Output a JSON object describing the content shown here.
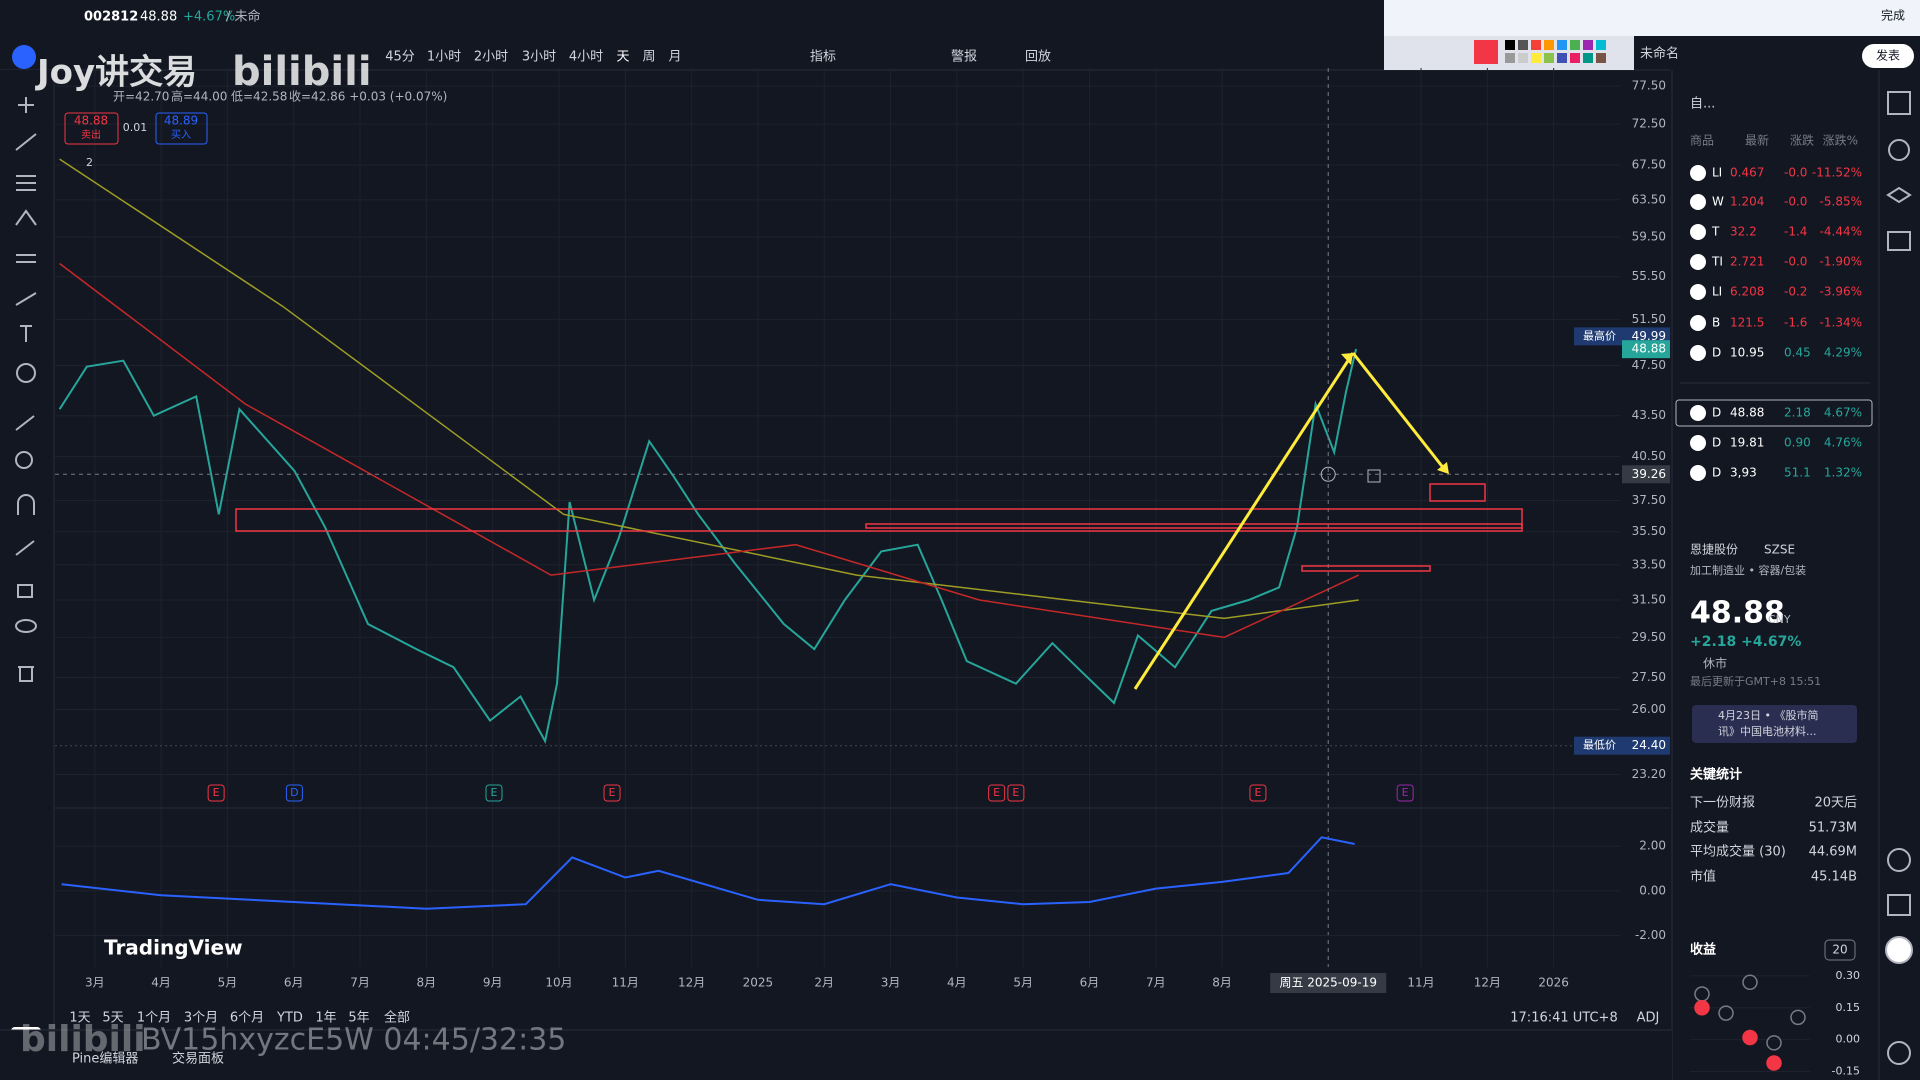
{
  "top_bar": {
    "symbol": "002812",
    "price": "48.88",
    "change": "+4.67%",
    "status": "/ 未命",
    "intervals": [
      "45分",
      "1小时",
      "2小时",
      "3小时",
      "4小时",
      "天",
      "周",
      "月"
    ],
    "indicators": "指标",
    "alert": "警报",
    "replay": "回放",
    "layout_name": "未命名",
    "publish": "发表",
    "done": "完成"
  },
  "watermark": {
    "channel": "Joy讲交易",
    "site": "bilibili",
    "video": "BV15hxyzcE5W 04:45/32:35"
  },
  "legend": {
    "open": "开=42.70",
    "high": "高=44.00",
    "low": "低=42.58",
    "close": "收=42.86 +0.03 (+0.07%)",
    "sell_price": "48.88",
    "sell": "卖出",
    "spread": "0.01",
    "buy_price": "48.89",
    "buy": "买入",
    "indicator_count": "2",
    "logo": "TradingView"
  },
  "chart_data": [
    {
      "type": "line",
      "log_scale": true,
      "xlim": [
        -0.6,
        23
      ],
      "ylim": [
        22.5,
        80
      ],
      "xticks": [
        {
          "value": 0,
          "label": "3月"
        },
        {
          "value": 1,
          "label": "4月"
        },
        {
          "value": 2,
          "label": "5月"
        },
        {
          "value": 3,
          "label": "6月"
        },
        {
          "value": 4,
          "label": "7月"
        },
        {
          "value": 5,
          "label": "8月"
        },
        {
          "value": 6,
          "label": "9月"
        },
        {
          "value": 7,
          "label": "10月"
        },
        {
          "value": 8,
          "label": "11月"
        },
        {
          "value": 9,
          "label": "12月"
        },
        {
          "value": 10,
          "label": "2025"
        },
        {
          "value": 11,
          "label": "2月"
        },
        {
          "value": 12,
          "label": "3月"
        },
        {
          "value": 13,
          "label": "4月"
        },
        {
          "value": 14,
          "label": "5月"
        },
        {
          "value": 15,
          "label": "6月"
        },
        {
          "value": 16,
          "label": "7月"
        },
        {
          "value": 17,
          "label": "8月"
        },
        {
          "value": 20,
          "label": "11月"
        },
        {
          "value": 21,
          "label": "12月"
        },
        {
          "value": 22,
          "label": "2026"
        }
      ],
      "yticks": [
        {
          "value": 77.5,
          "label": "77.50"
        },
        {
          "value": 72.5,
          "label": "72.50"
        },
        {
          "value": 67.5,
          "label": "67.50"
        },
        {
          "value": 63.5,
          "label": "63.50"
        },
        {
          "value": 59.5,
          "label": "59.50"
        },
        {
          "value": 55.5,
          "label": "55.50"
        },
        {
          "value": 51.5,
          "label": "51.50"
        },
        {
          "value": 47.5,
          "label": "47.50"
        },
        {
          "value": 43.5,
          "label": "43.50"
        },
        {
          "value": 40.5,
          "label": "40.50"
        },
        {
          "value": 37.5,
          "label": "37.50"
        },
        {
          "value": 35.5,
          "label": "35.50"
        },
        {
          "value": 33.5,
          "label": "33.50"
        },
        {
          "value": 31.5,
          "label": "31.50"
        },
        {
          "value": 29.5,
          "label": "29.50"
        },
        {
          "value": 27.5,
          "label": "27.50"
        },
        {
          "value": 26,
          "label": "26.00"
        },
        {
          "value": 23.2,
          "label": "23.20"
        }
      ],
      "series": [
        {
          "color": "#26a69a",
          "x": [
            -0.53,
            -0.12,
            0.43,
            0.89,
            1.53,
            1.87,
            2.18,
            3.01,
            3.47,
            4.12,
            4.85,
            5.41,
            5.96,
            6.42,
            6.79,
            6.97,
            7.16,
            7.53,
            7.9,
            8.36,
            8.73,
            9.1,
            9.65,
            10.39,
            10.85,
            11.31,
            11.86,
            12.41,
            12.77,
            13.15,
            13.89,
            14.44,
            14.81,
            15.37,
            15.73,
            16.29,
            16.84,
            17.4,
            17.86,
            18.13,
            18.41,
            18.69,
            18.87,
            19.02
          ],
          "values": [
            44.0,
            47.4,
            47.9,
            43.5,
            45.0,
            36.6,
            44.0,
            39.5,
            35.8,
            30.2,
            28.9,
            28.0,
            25.5,
            26.6,
            24.6,
            27.2,
            37.4,
            31.5,
            35.1,
            41.6,
            39.1,
            36.6,
            33.6,
            30.2,
            28.9,
            31.5,
            34.3,
            34.7,
            31.5,
            28.3,
            27.2,
            29.2,
            28.0,
            26.3,
            29.6,
            28.0,
            30.9,
            31.5,
            32.2,
            35.8,
            44.4,
            40.8,
            45.4,
            48.9
          ]
        },
        {
          "color": "#9e9d24",
          "x": [
            -0.53,
            2.83,
            7.07,
            11.49,
            17.03,
            19.06
          ],
          "values": [
            68.2,
            52.7,
            36.6,
            32.9,
            30.5,
            31.5
          ]
        },
        {
          "color": "#c62828",
          "x": [
            -0.53,
            2.27,
            6.88,
            10.57,
            13.34,
            17.03,
            19.06
          ],
          "values": [
            56.8,
            44.4,
            32.9,
            34.7,
            31.5,
            29.5,
            32.9
          ]
        }
      ],
      "high_marker": {
        "label": "最高价",
        "value": 49.99
      },
      "last_price": 48.88,
      "crosshair": {
        "price": 39.26,
        "x": 18.6,
        "date": "周五 2025-09-19"
      },
      "low_marker": {
        "label": "最低价",
        "value": 24.4,
        "value_label": "24.40"
      },
      "events": [
        {
          "label": "E",
          "x": 1.83,
          "color": "#f23645"
        },
        {
          "label": "D",
          "x": 3.01,
          "color": "#2962ff"
        },
        {
          "label": "E",
          "x": 6.02,
          "color": "#26a69a"
        },
        {
          "label": "E",
          "x": 7.8,
          "color": "#f23645"
        },
        {
          "label": "E",
          "x": 13.6,
          "color": "#f23645"
        },
        {
          "label": "E",
          "x": 13.89,
          "color": "#f23645"
        },
        {
          "label": "E",
          "x": 17.54,
          "color": "#f23645"
        },
        {
          "label": "E",
          "x": 19.76,
          "color": "#9c27b0"
        }
      ]
    },
    {
      "type": "line",
      "xlim": [
        -0.6,
        23
      ],
      "ylim": [
        -3.1,
        3.4
      ],
      "yticks": [
        {
          "value": 2,
          "label": "2.00"
        },
        {
          "value": 0,
          "label": "0.00"
        },
        {
          "value": -2,
          "label": "-2.00"
        }
      ],
      "series": [
        {
          "color": "#2962ff",
          "x": [
            -0.5,
            1,
            3,
            5,
            6.5,
            7.2,
            8,
            8.5,
            10,
            11,
            12,
            13,
            14,
            15,
            16,
            17,
            18,
            18.5,
            19
          ],
          "values": [
            0.3,
            -0.2,
            -0.5,
            -0.8,
            -0.6,
            1.5,
            0.6,
            0.9,
            -0.4,
            -0.6,
            0.3,
            -0.3,
            -0.6,
            -0.5,
            0.1,
            0.4,
            0.8,
            2.4,
            2.1
          ]
        }
      ]
    },
    {
      "type": "scatter",
      "categories": [
        null,
        null,
        null,
        null,
        null
      ],
      "ylim": [
        -0.19,
        0.375
      ],
      "yticks": [
        {
          "value": 0.3,
          "label": "0.30"
        },
        {
          "value": 0.15,
          "label": "0.15"
        },
        {
          "value": 0,
          "label": "0.00"
        },
        {
          "value": -0.15,
          "label": "-0.15"
        }
      ],
      "series": [
        {
          "color": "#787b86",
          "values": [
            0.215,
            0.125,
            0.27,
            -0.015,
            0.105
          ]
        },
        {
          "color": "#f23645",
          "values": [
            0.15,
            null,
            0.01,
            -0.11,
            null
          ]
        }
      ]
    }
  ],
  "watchlist": {
    "title": "自...",
    "columns": [
      "商品",
      "最新",
      "涨跌",
      "涨跌%"
    ],
    "rows": [
      [
        "LI",
        "0.467",
        "-0.0",
        "-11.52%"
      ],
      [
        "W",
        "1.204",
        "-0.0",
        "-5.85%"
      ],
      [
        "T",
        "32.2",
        "-1.4",
        "-4.44%"
      ],
      [
        "TI",
        "2.721",
        "-0.0",
        "-1.90%"
      ],
      [
        "LI",
        "6.208",
        "-0.2",
        "-3.96%"
      ],
      [
        "B",
        "121.5",
        "-1.6",
        "-1.34%"
      ],
      [
        "D",
        "10.95",
        "0.45",
        "4.29%"
      ],
      [
        "D",
        "48.88",
        "2.18",
        "4.67%"
      ],
      [
        "D",
        "19.81",
        "0.90",
        "4.76%"
      ],
      [
        "D",
        "3,93",
        "51.1",
        "1.32%"
      ]
    ]
  },
  "details": {
    "name": "恩捷股份",
    "exchange": "SZSE",
    "sector": "加工制造业 • 容器/包装",
    "price": "48.88",
    "currency": "CNY",
    "change": "+2.18 +4.67%",
    "market_status": "休市",
    "updated": "最后更新于GMT+8 15:51",
    "news": [
      "4月23日 • 《股市简",
      "讯》中国电池材料..."
    ],
    "stats_title": "关键统计",
    "stats": [
      [
        "下一份财报",
        "20天后"
      ],
      [
        "成交量",
        "51.73M"
      ],
      [
        "平均成交量 (30)",
        "44.69M"
      ],
      [
        "市值",
        "45.14B"
      ]
    ],
    "earnings_title": "收益",
    "earnings_period": "20"
  },
  "bottom_bar": {
    "ranges": [
      "1天",
      "5天",
      "1个月",
      "3个月",
      "6个月",
      "YTD",
      "1年",
      "5年",
      "全部"
    ],
    "time": "17:16:41 UTC+8",
    "adj": "ADJ",
    "tabs": [
      "Pine编辑器",
      "交易面板"
    ]
  }
}
